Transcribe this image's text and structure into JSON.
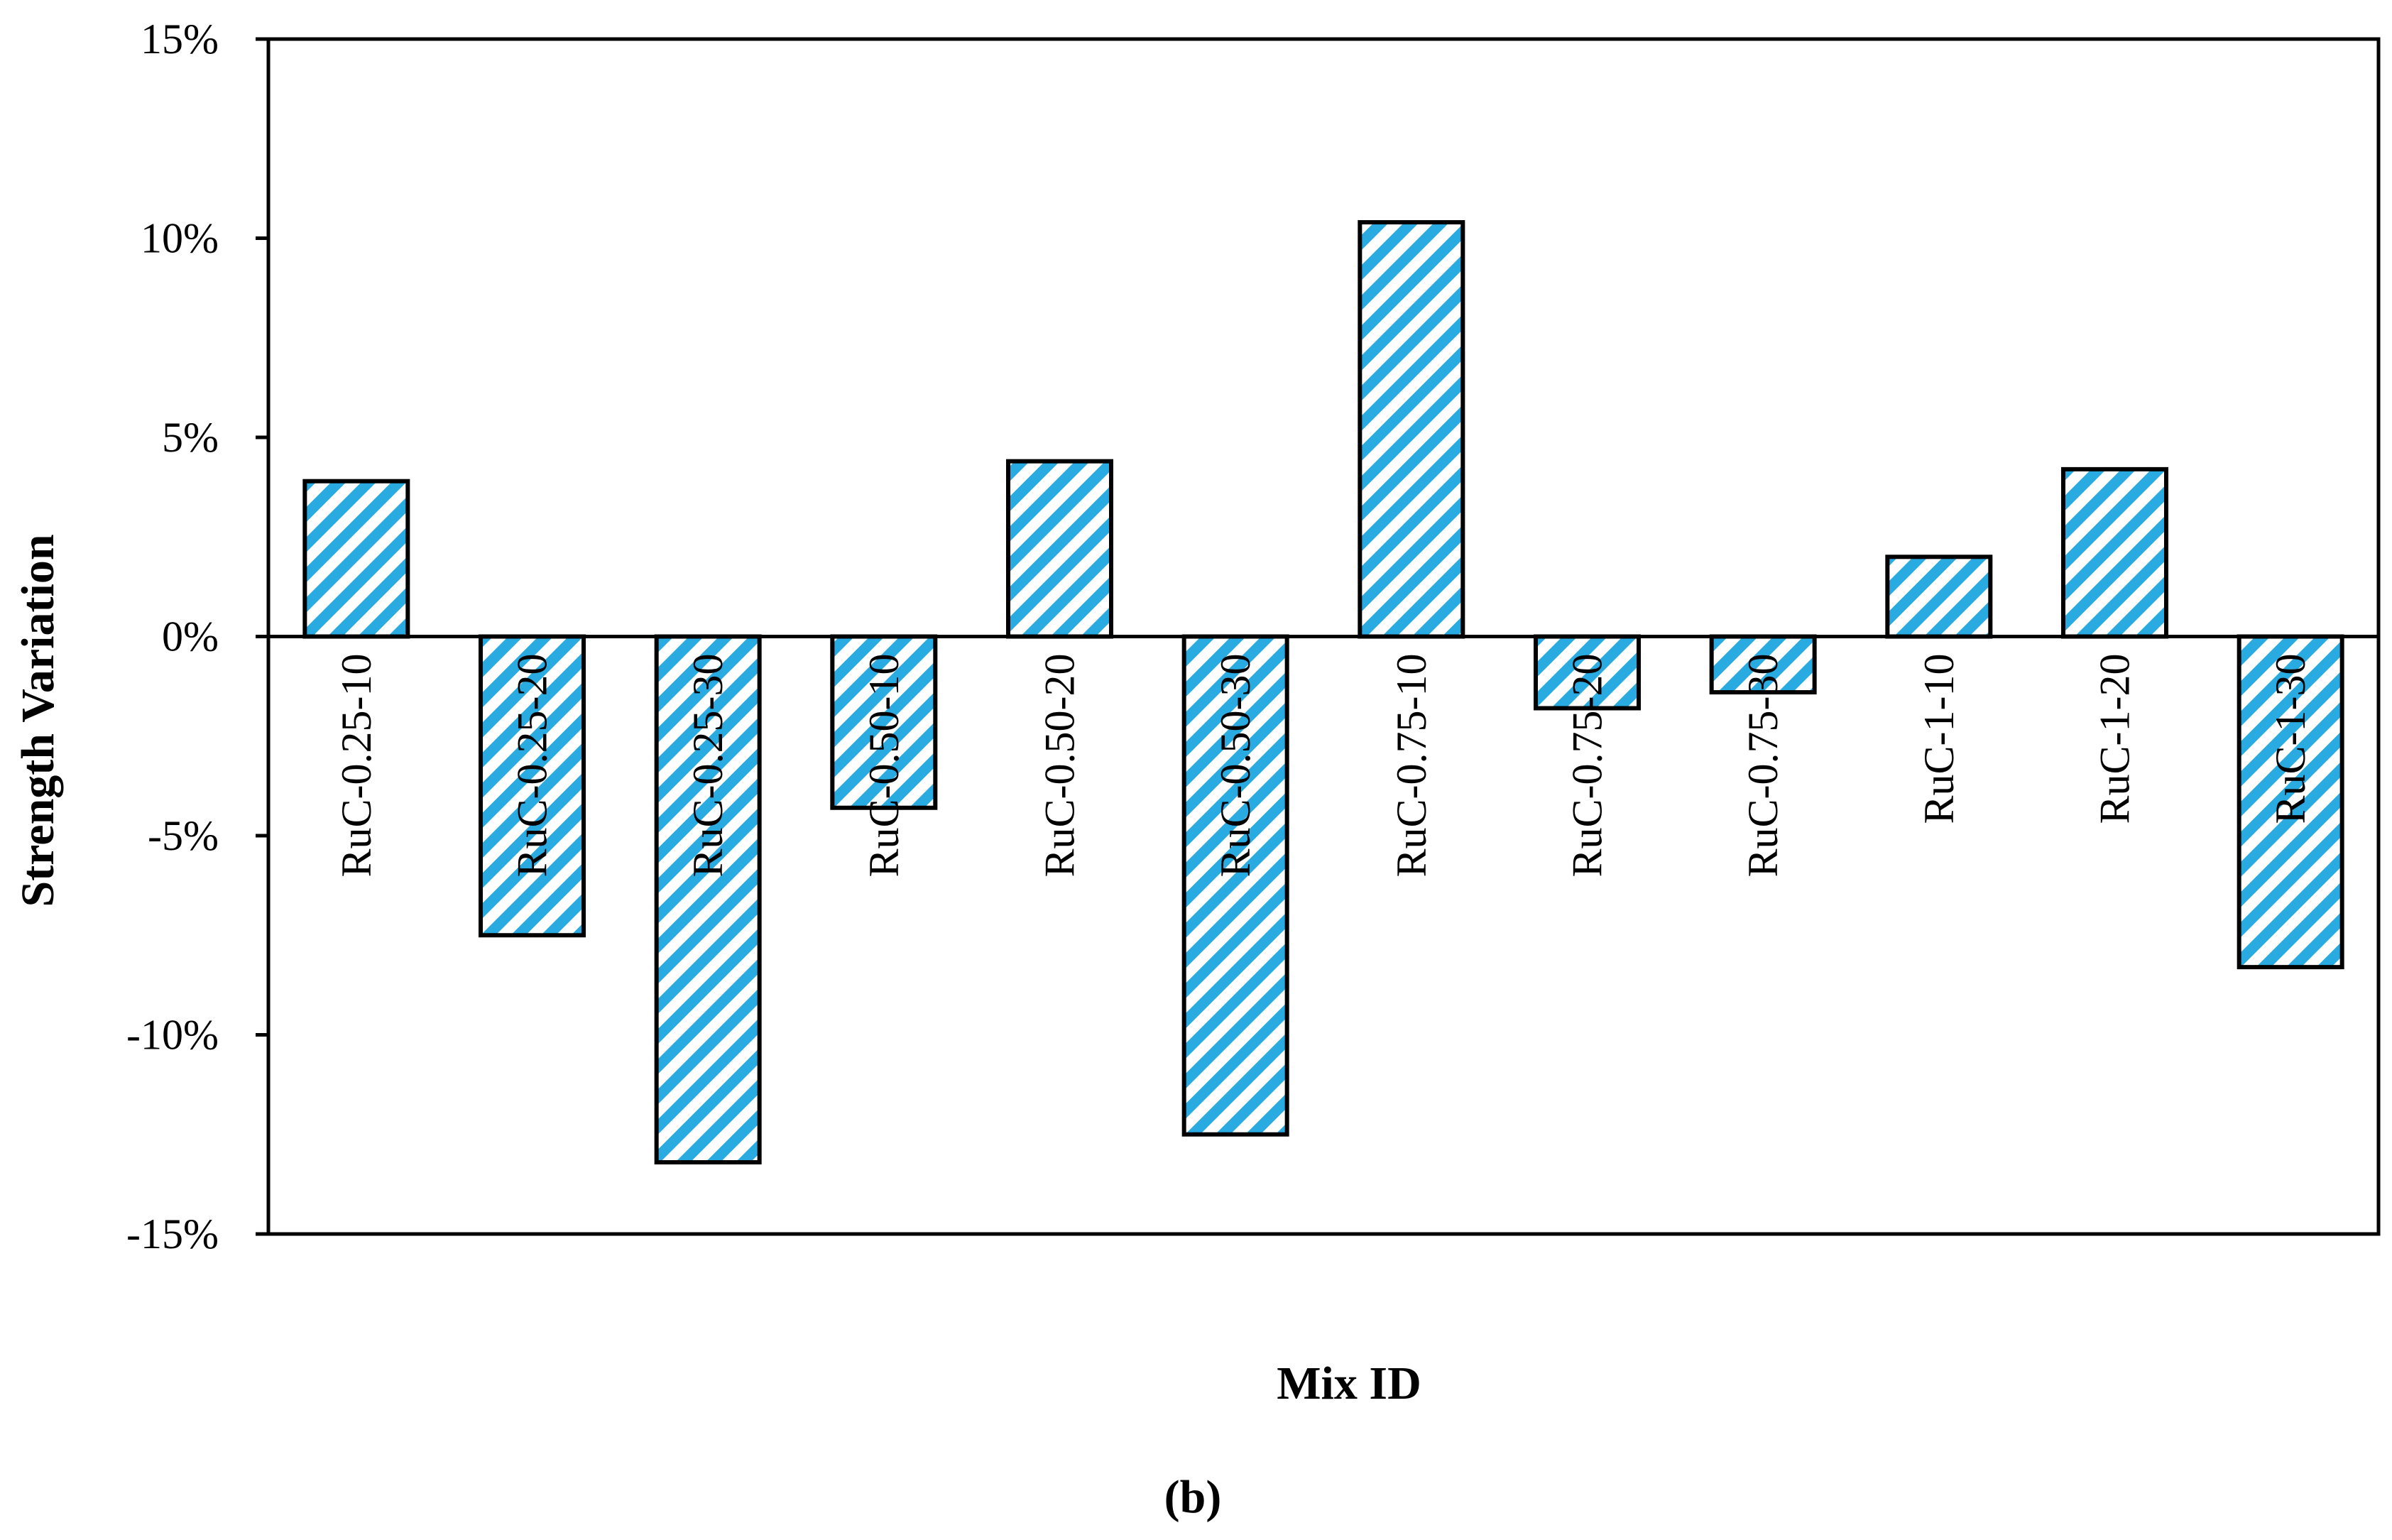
{
  "chart_data": {
    "type": "bar",
    "categories": [
      "RuC-0.25-10",
      "RuC-0.25-20",
      "RuC-0.25-30",
      "RuC-0.50-10",
      "RuC-0.50-20",
      "RuC-0.50-30",
      "RuC-0.75-10",
      "RuC-0.75-20",
      "RuC-0.75-30",
      "RuC-1-10",
      "RuC-1-20",
      "RuC-1-30"
    ],
    "values": [
      3.9,
      -7.5,
      -13.2,
      -4.3,
      4.4,
      -12.5,
      10.4,
      -1.8,
      -1.4,
      2.0,
      4.2,
      -8.3
    ],
    "ylim": [
      -15,
      15
    ],
    "yticks": [
      -15,
      -10,
      -5,
      0,
      5,
      10,
      15
    ],
    "ytick_labels": [
      "-15%",
      "-10%",
      "-5%",
      "0%",
      "5%",
      "10%",
      "15%"
    ],
    "xlabel": "Mix ID",
    "ylabel": "Strength Variation",
    "caption": "(b)",
    "grid": false,
    "colors": {
      "stripe": "#29abe2",
      "stroke": "#000000",
      "fill": "#ffffff"
    }
  }
}
